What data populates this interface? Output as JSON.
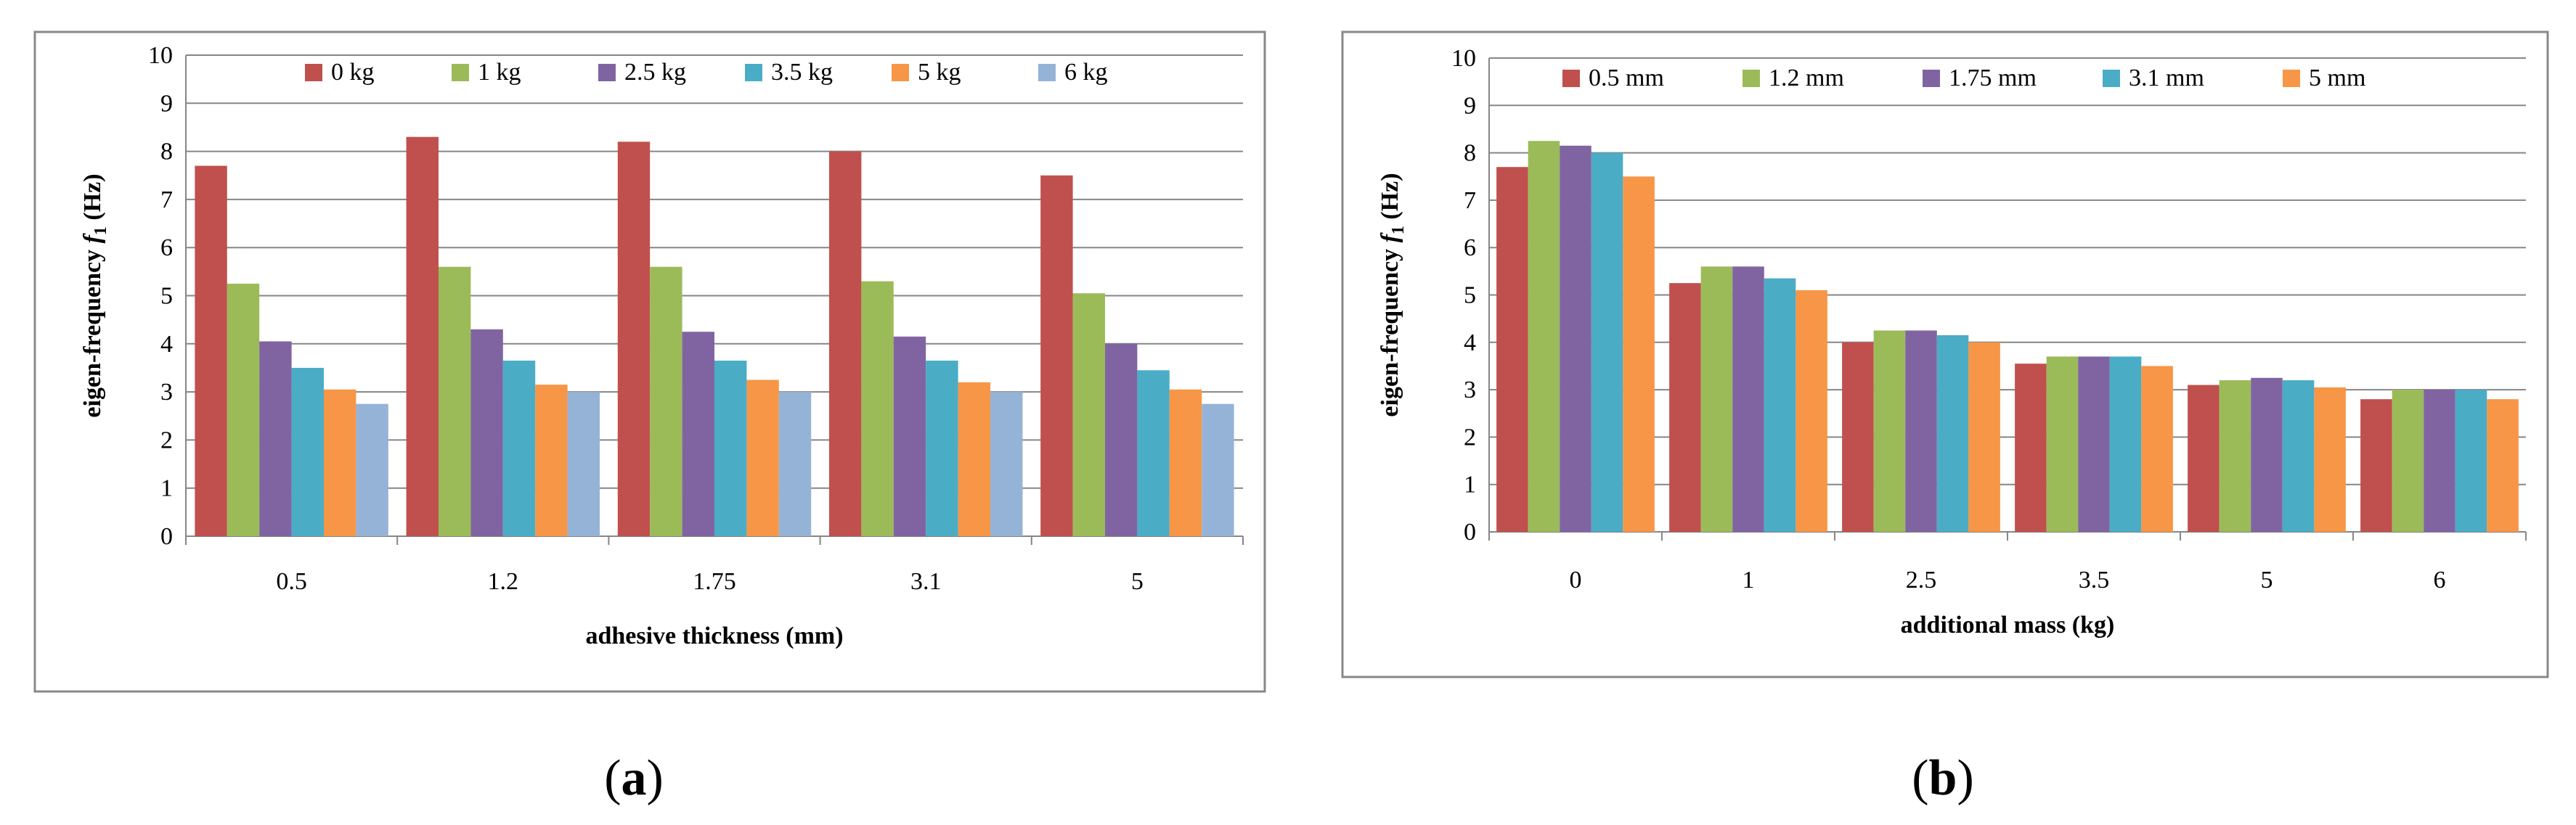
{
  "captions": {
    "a_letter": "a",
    "b_letter": "b"
  },
  "chart_data": [
    {
      "id": "a",
      "type": "bar",
      "title": "",
      "xlabel": "adhesive thickness (mm)",
      "ylabel_prefix": "eigen-frequency ",
      "ylabel_var": "f",
      "ylabel_sub": "1",
      "ylabel_suffix": " (Hz)",
      "ylim": [
        0,
        10
      ],
      "yticks": [
        "0",
        "1",
        "2",
        "3",
        "4",
        "5",
        "6",
        "7",
        "8",
        "9",
        "10"
      ],
      "grid": true,
      "legend_position": "top",
      "categories": [
        "0.5",
        "1.2",
        "1.75",
        "3.1",
        "5"
      ],
      "series": [
        {
          "name": "0 kg",
          "color": "#C0504D",
          "values": [
            7.7,
            8.3,
            8.2,
            8.0,
            7.5
          ]
        },
        {
          "name": "1 kg",
          "color": "#9BBB59",
          "values": [
            5.25,
            5.6,
            5.6,
            5.3,
            5.05
          ]
        },
        {
          "name": "2.5 kg",
          "color": "#8064A2",
          "values": [
            4.05,
            4.3,
            4.25,
            4.15,
            4.0
          ]
        },
        {
          "name": "3.5 kg",
          "color": "#4BACC6",
          "values": [
            3.5,
            3.65,
            3.65,
            3.65,
            3.45
          ]
        },
        {
          "name": "5 kg",
          "color": "#F79646",
          "values": [
            3.05,
            3.15,
            3.25,
            3.2,
            3.05
          ]
        },
        {
          "name": "6 kg",
          "color": "#95B3D7",
          "values": [
            2.75,
            3.0,
            3.0,
            3.0,
            2.75
          ]
        }
      ]
    },
    {
      "id": "b",
      "type": "bar",
      "title": "",
      "xlabel": "additional mass (kg)",
      "ylabel_prefix": "eigen-frequency ",
      "ylabel_var": "f",
      "ylabel_sub": "1",
      "ylabel_suffix": " (Hz)",
      "ylim": [
        0,
        10
      ],
      "yticks": [
        "0",
        "1",
        "2",
        "3",
        "4",
        "5",
        "6",
        "7",
        "8",
        "9",
        "10"
      ],
      "grid": true,
      "legend_position": "top",
      "categories": [
        "0",
        "1",
        "2.5",
        "3.5",
        "5",
        "6"
      ],
      "series": [
        {
          "name": "0.5 mm",
          "color": "#C0504D",
          "values": [
            7.7,
            5.25,
            4.0,
            3.55,
            3.1,
            2.8
          ]
        },
        {
          "name": "1.2 mm",
          "color": "#9BBB59",
          "values": [
            8.25,
            5.6,
            4.25,
            3.7,
            3.2,
            3.0
          ]
        },
        {
          "name": "1.75 mm",
          "color": "#8064A2",
          "values": [
            8.15,
            5.6,
            4.25,
            3.7,
            3.25,
            3.0
          ]
        },
        {
          "name": "3.1 mm",
          "color": "#4BACC6",
          "values": [
            8.0,
            5.35,
            4.15,
            3.7,
            3.2,
            3.0
          ]
        },
        {
          "name": "5 mm",
          "color": "#F79646",
          "values": [
            7.5,
            5.1,
            4.0,
            3.5,
            3.05,
            2.8
          ]
        }
      ]
    }
  ]
}
